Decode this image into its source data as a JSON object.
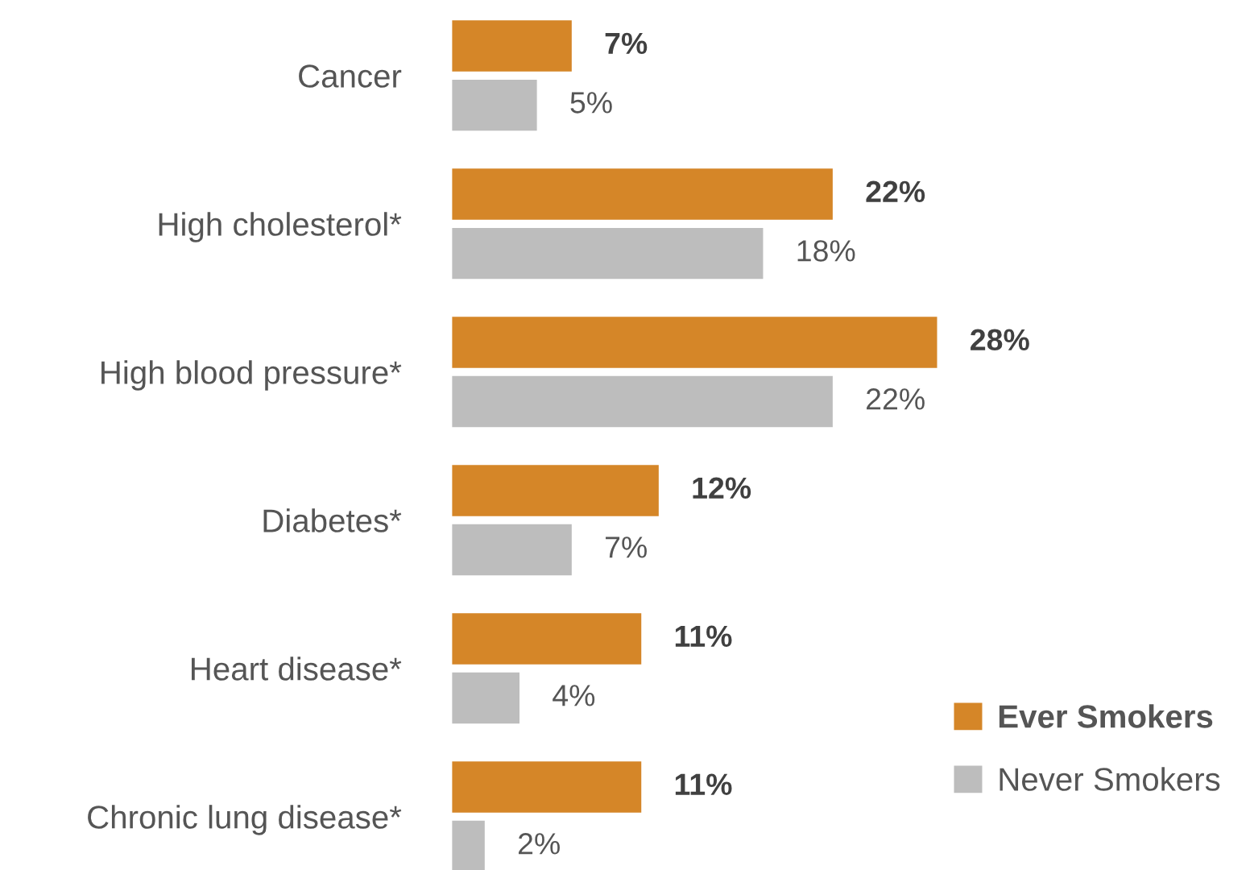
{
  "chart_data": {
    "type": "bar",
    "orientation": "horizontal",
    "categories": [
      "Cancer",
      "High cholesterol*",
      "High blood pressure*",
      "Diabetes*",
      "Heart disease*",
      "Chronic lung disease*"
    ],
    "series": [
      {
        "name": "Ever Smokers",
        "color": "#d58628",
        "values": [
          7,
          22,
          28,
          12,
          11,
          11
        ],
        "value_labels": [
          "7%",
          "22%",
          "28%",
          "12%",
          "11%",
          "11%"
        ]
      },
      {
        "name": "Never Smokers",
        "color": "#bdbdbd",
        "values": [
          5,
          18,
          22,
          7,
          4,
          2
        ],
        "value_labels": [
          "5%",
          "18%",
          "22%",
          "7%",
          "4%",
          "2%"
        ]
      }
    ],
    "legend": "bottom right",
    "grid": false
  }
}
